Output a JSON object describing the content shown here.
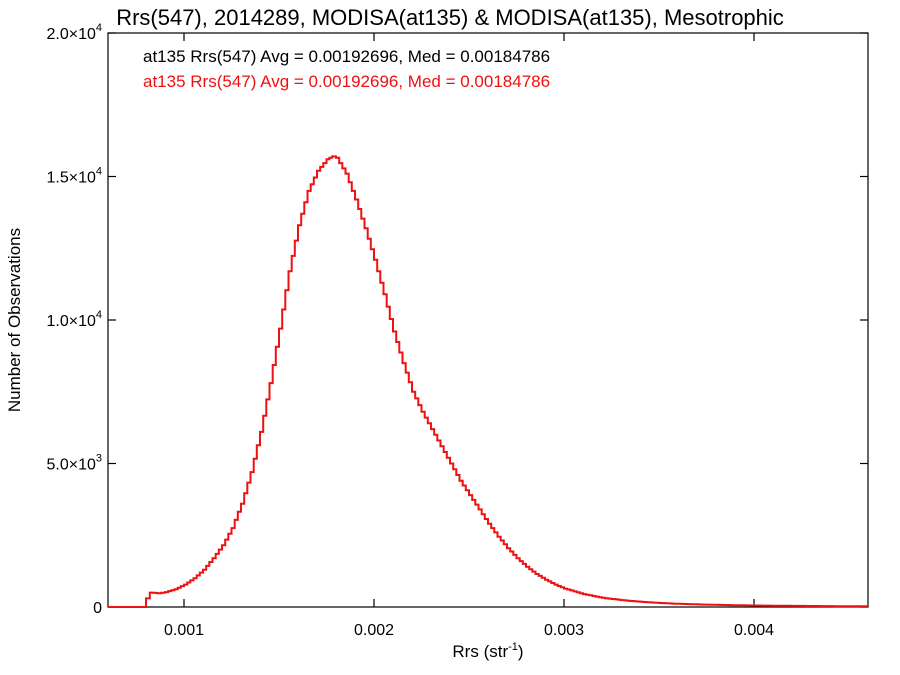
{
  "chart_data": {
    "type": "line",
    "title": "Rrs(547), 2014289, MODISA(at135) & MODISA(at135), Mesotrophic",
    "xlabel": "Rrs (str",
    "xlabel_sup": "-1",
    "xlabel_close": ")",
    "ylabel": "Number of Observations",
    "xlim": [
      0.0006,
      0.0046
    ],
    "ylim": [
      0,
      20000
    ],
    "x_ticks": [
      {
        "value": 0.001,
        "label": "0.001"
      },
      {
        "value": 0.002,
        "label": "0.002"
      },
      {
        "value": 0.003,
        "label": "0.003"
      },
      {
        "value": 0.004,
        "label": "0.004"
      }
    ],
    "y_ticks": [
      {
        "value": 0,
        "base": "0",
        "exp": ""
      },
      {
        "value": 5000,
        "base": "5.0×10",
        "exp": "3"
      },
      {
        "value": 10000,
        "base": "1.0×10",
        "exp": "4"
      },
      {
        "value": 15000,
        "base": "1.5×10",
        "exp": "4"
      },
      {
        "value": 20000,
        "base": "2.0×10",
        "exp": "4"
      }
    ],
    "annotations": [
      {
        "text": "at135 Rrs(547) Avg = 0.00192696, Med = 0.00184786",
        "color": "#000000"
      },
      {
        "text": "at135 Rrs(547) Avg = 0.00192696, Med = 0.00184786",
        "color": "#ee1111"
      }
    ],
    "series": [
      {
        "color": "#ee1111",
        "points": [
          [
            0.0006,
            0
          ],
          [
            0.00078,
            0
          ],
          [
            0.0008,
            300
          ],
          [
            0.00082,
            500
          ],
          [
            0.00086,
            480
          ],
          [
            0.0009,
            520
          ],
          [
            0.00095,
            620
          ],
          [
            0.001,
            780
          ],
          [
            0.00105,
            1000
          ],
          [
            0.0011,
            1300
          ],
          [
            0.00115,
            1700
          ],
          [
            0.0012,
            2150
          ],
          [
            0.00125,
            2750
          ],
          [
            0.0013,
            3600
          ],
          [
            0.00135,
            4700
          ],
          [
            0.0014,
            6100
          ],
          [
            0.00145,
            7800
          ],
          [
            0.0015,
            9700
          ],
          [
            0.00155,
            11700
          ],
          [
            0.0016,
            13300
          ],
          [
            0.00165,
            14500
          ],
          [
            0.0017,
            15200
          ],
          [
            0.00175,
            15600
          ],
          [
            0.00178,
            15700
          ],
          [
            0.0018,
            15650
          ],
          [
            0.00185,
            15100
          ],
          [
            0.0019,
            14200
          ],
          [
            0.00195,
            13200
          ],
          [
            0.002,
            12100
          ],
          [
            0.00205,
            10900
          ],
          [
            0.0021,
            9600
          ],
          [
            0.00215,
            8500
          ],
          [
            0.0022,
            7500
          ],
          [
            0.00225,
            6800
          ],
          [
            0.0023,
            6200
          ],
          [
            0.00235,
            5600
          ],
          [
            0.0024,
            5000
          ],
          [
            0.00245,
            4400
          ],
          [
            0.0025,
            3900
          ],
          [
            0.00255,
            3400
          ],
          [
            0.0026,
            2900
          ],
          [
            0.00265,
            2450
          ],
          [
            0.0027,
            2050
          ],
          [
            0.00275,
            1700
          ],
          [
            0.0028,
            1400
          ],
          [
            0.00285,
            1150
          ],
          [
            0.0029,
            950
          ],
          [
            0.00295,
            780
          ],
          [
            0.003,
            640
          ],
          [
            0.0031,
            450
          ],
          [
            0.0032,
            320
          ],
          [
            0.0033,
            240
          ],
          [
            0.0034,
            180
          ],
          [
            0.0035,
            140
          ],
          [
            0.0036,
            110
          ],
          [
            0.0037,
            90
          ],
          [
            0.0038,
            75
          ],
          [
            0.0039,
            62
          ],
          [
            0.004,
            52
          ],
          [
            0.0042,
            40
          ],
          [
            0.0044,
            30
          ],
          [
            0.0046,
            25
          ]
        ]
      }
    ]
  }
}
